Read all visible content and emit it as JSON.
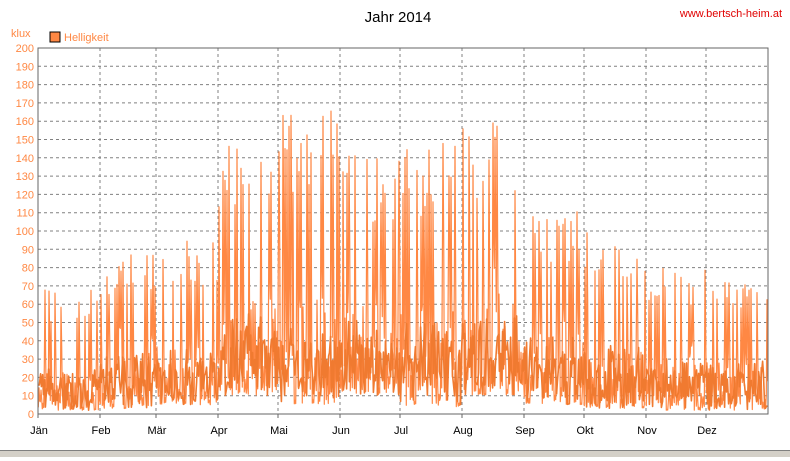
{
  "site_url": "www.bertsch-heim.at",
  "colors": {
    "series": "#FF8844",
    "series_dark": "#F07A30",
    "axis_text": "#FF8844",
    "title": "#000000",
    "url": "#E00000",
    "grid": "#808080",
    "plot_border": "#666666"
  },
  "chart_data": {
    "type": "line",
    "title": "Jahr 2014",
    "ylabel": "klux",
    "xlabel": "",
    "ylim": [
      0,
      200
    ],
    "ytick_step": 10,
    "grid": true,
    "legend_position": "top-left",
    "x_tick_labels": [
      "Jän",
      "Feb",
      "Mär",
      "Apr",
      "Mai",
      "Jun",
      "Jul",
      "Aug",
      "Sep",
      "Okt",
      "Nov",
      "Dez"
    ],
    "series": [
      {
        "name": "Helligkeit",
        "color": "#FF8844",
        "monthly_daily_max": [
          68,
          88,
          95,
          153,
          166,
          143,
          150,
          161,
          113,
          100,
          80,
          77
        ],
        "monthly_daily_min": [
          2,
          3,
          5,
          10,
          5,
          10,
          4,
          10,
          5,
          3,
          2,
          2
        ]
      }
    ]
  }
}
